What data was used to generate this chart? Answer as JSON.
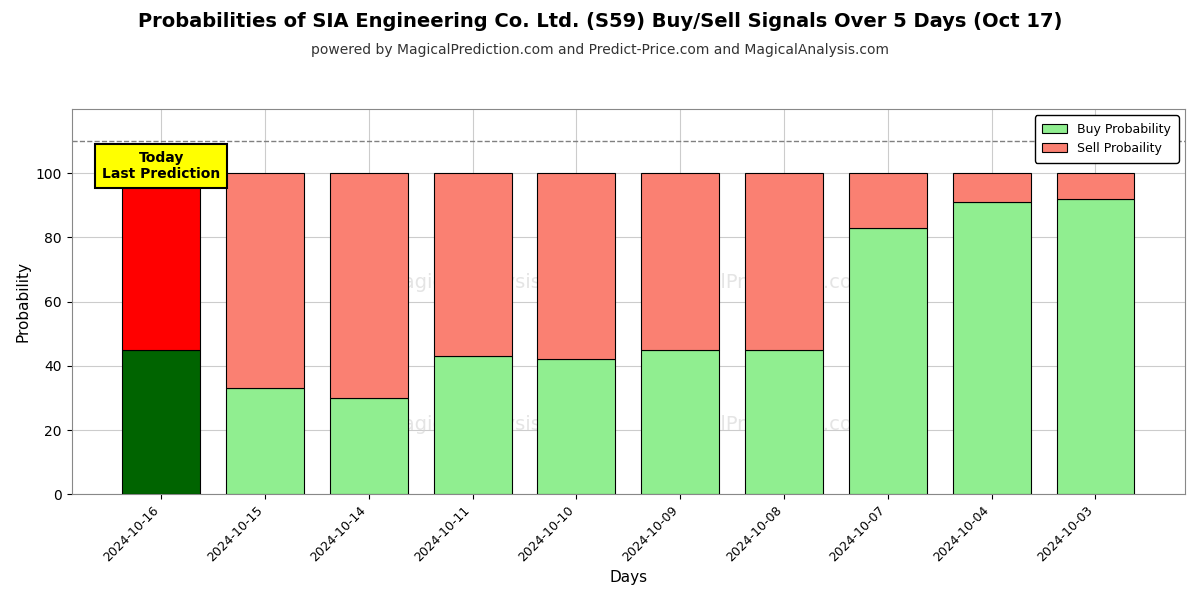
{
  "title": "Probabilities of SIA Engineering Co. Ltd. (S59) Buy/Sell Signals Over 5 Days (Oct 17)",
  "subtitle": "powered by MagicalPrediction.com and Predict-Price.com and MagicalAnalysis.com",
  "xlabel": "Days",
  "ylabel": "Probability",
  "categories": [
    "2024-10-16",
    "2024-10-15",
    "2024-10-14",
    "2024-10-11",
    "2024-10-10",
    "2024-10-09",
    "2024-10-08",
    "2024-10-07",
    "2024-10-04",
    "2024-10-03"
  ],
  "buy_values": [
    45,
    33,
    30,
    43,
    42,
    45,
    45,
    83,
    91,
    92
  ],
  "sell_values": [
    55,
    67,
    70,
    57,
    58,
    55,
    55,
    17,
    9,
    8
  ],
  "buy_colors": [
    "#006400",
    "#90EE90",
    "#90EE90",
    "#90EE90",
    "#90EE90",
    "#90EE90",
    "#90EE90",
    "#90EE90",
    "#90EE90",
    "#90EE90"
  ],
  "sell_colors": [
    "#FF0000",
    "#FA8072",
    "#FA8072",
    "#FA8072",
    "#FA8072",
    "#FA8072",
    "#FA8072",
    "#FA8072",
    "#FA8072",
    "#FA8072"
  ],
  "today_label": "Today\nLast Prediction",
  "legend_buy_color": "#90EE90",
  "legend_sell_color": "#FA8072",
  "ylim": [
    0,
    120
  ],
  "dashed_line_y": 110,
  "background_color": "#ffffff",
  "grid_color": "#cccccc",
  "title_fontsize": 14,
  "subtitle_fontsize": 10,
  "bar_edgecolor": "#000000",
  "bar_linewidth": 0.8,
  "bar_width": 0.75
}
